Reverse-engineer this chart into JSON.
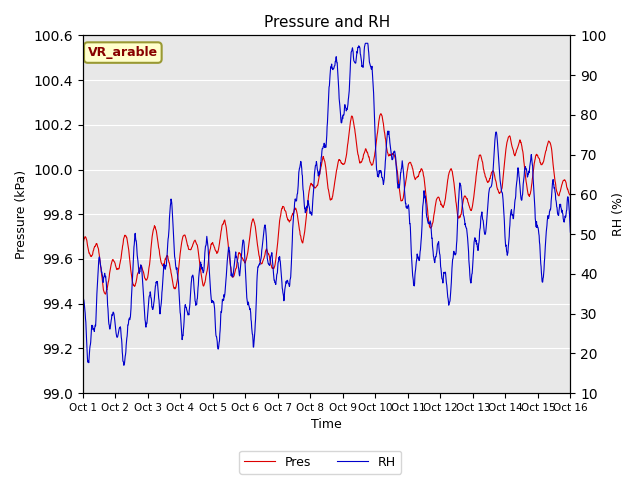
{
  "title": "Pressure and RH",
  "xlabel": "Time",
  "ylabel_left": "Pressure (kPa)",
  "ylabel_right": "RH (%)",
  "annotation_text": "VR_arable",
  "annotation_bg": "#ffffcc",
  "annotation_border": "#999933",
  "annotation_text_color": "#880000",
  "pres_color": "#dd0000",
  "rh_color": "#0000cc",
  "bg_color": "#e8e8e8",
  "grid_color": "#ffffff",
  "ylim_left": [
    99.0,
    100.6
  ],
  "ylim_right": [
    10,
    100
  ],
  "yticks_left": [
    99.0,
    99.2,
    99.4,
    99.6,
    99.8,
    100.0,
    100.2,
    100.4,
    100.6
  ],
  "yticks_right": [
    10,
    20,
    30,
    40,
    50,
    60,
    70,
    80,
    90,
    100
  ],
  "xtick_labels": [
    "Oct 1",
    "Oct 2",
    "Oct 3",
    "Oct 4",
    "Oct 5",
    "Oct 6",
    "Oct 7",
    "Oct 8",
    "Oct 9",
    "Oct 10",
    "Oct 11",
    "Oct 12",
    "Oct 13",
    "Oct 14",
    "Oct 15",
    "Oct 16"
  ],
  "legend_labels": [
    "Pres",
    "RH"
  ],
  "seed": 42
}
